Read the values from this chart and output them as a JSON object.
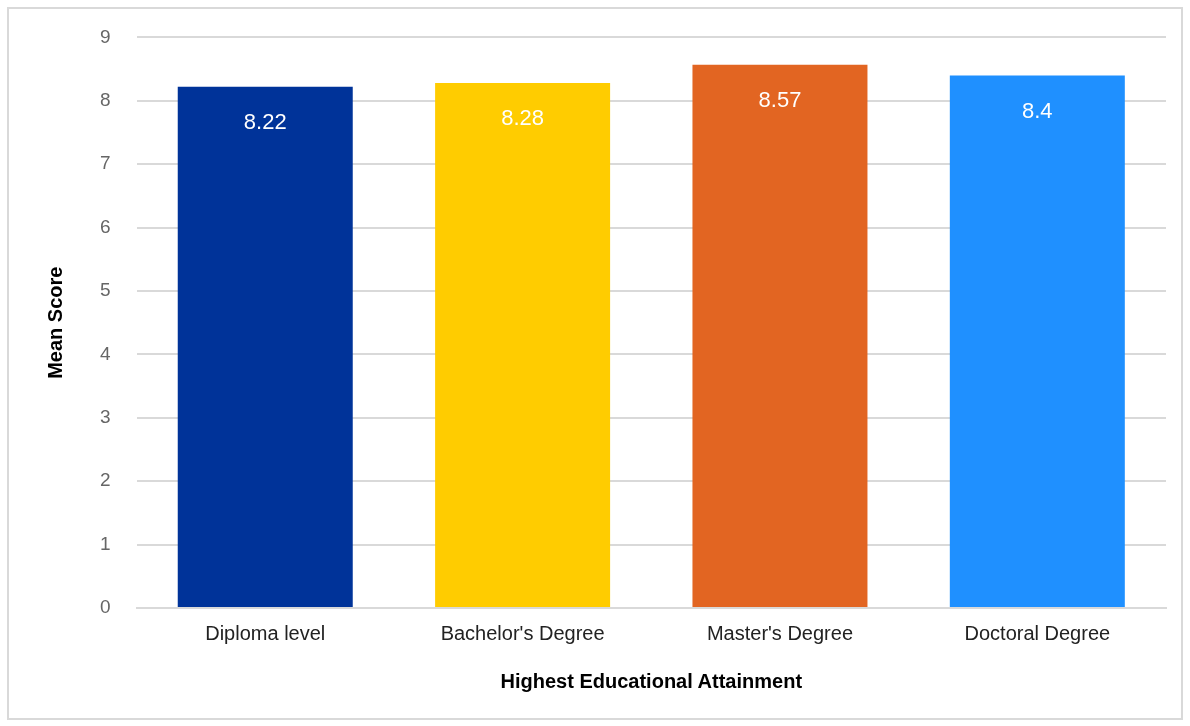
{
  "chart_data": {
    "type": "bar",
    "categories": [
      "Diploma level",
      "Bachelor's Degree",
      "Master's Degree",
      "Doctoral Degree"
    ],
    "values": [
      8.22,
      8.28,
      8.57,
      8.4
    ],
    "colors": [
      "#003399",
      "#ffcc00",
      "#e26522",
      "#1f90ff"
    ],
    "xlabel": "Highest Educational Attainment",
    "ylabel": "Mean Score",
    "ylim": [
      0,
      9
    ],
    "yticks": [
      0,
      1,
      2,
      3,
      4,
      5,
      6,
      7,
      8,
      9
    ],
    "grid": "y",
    "data_labels": true
  }
}
